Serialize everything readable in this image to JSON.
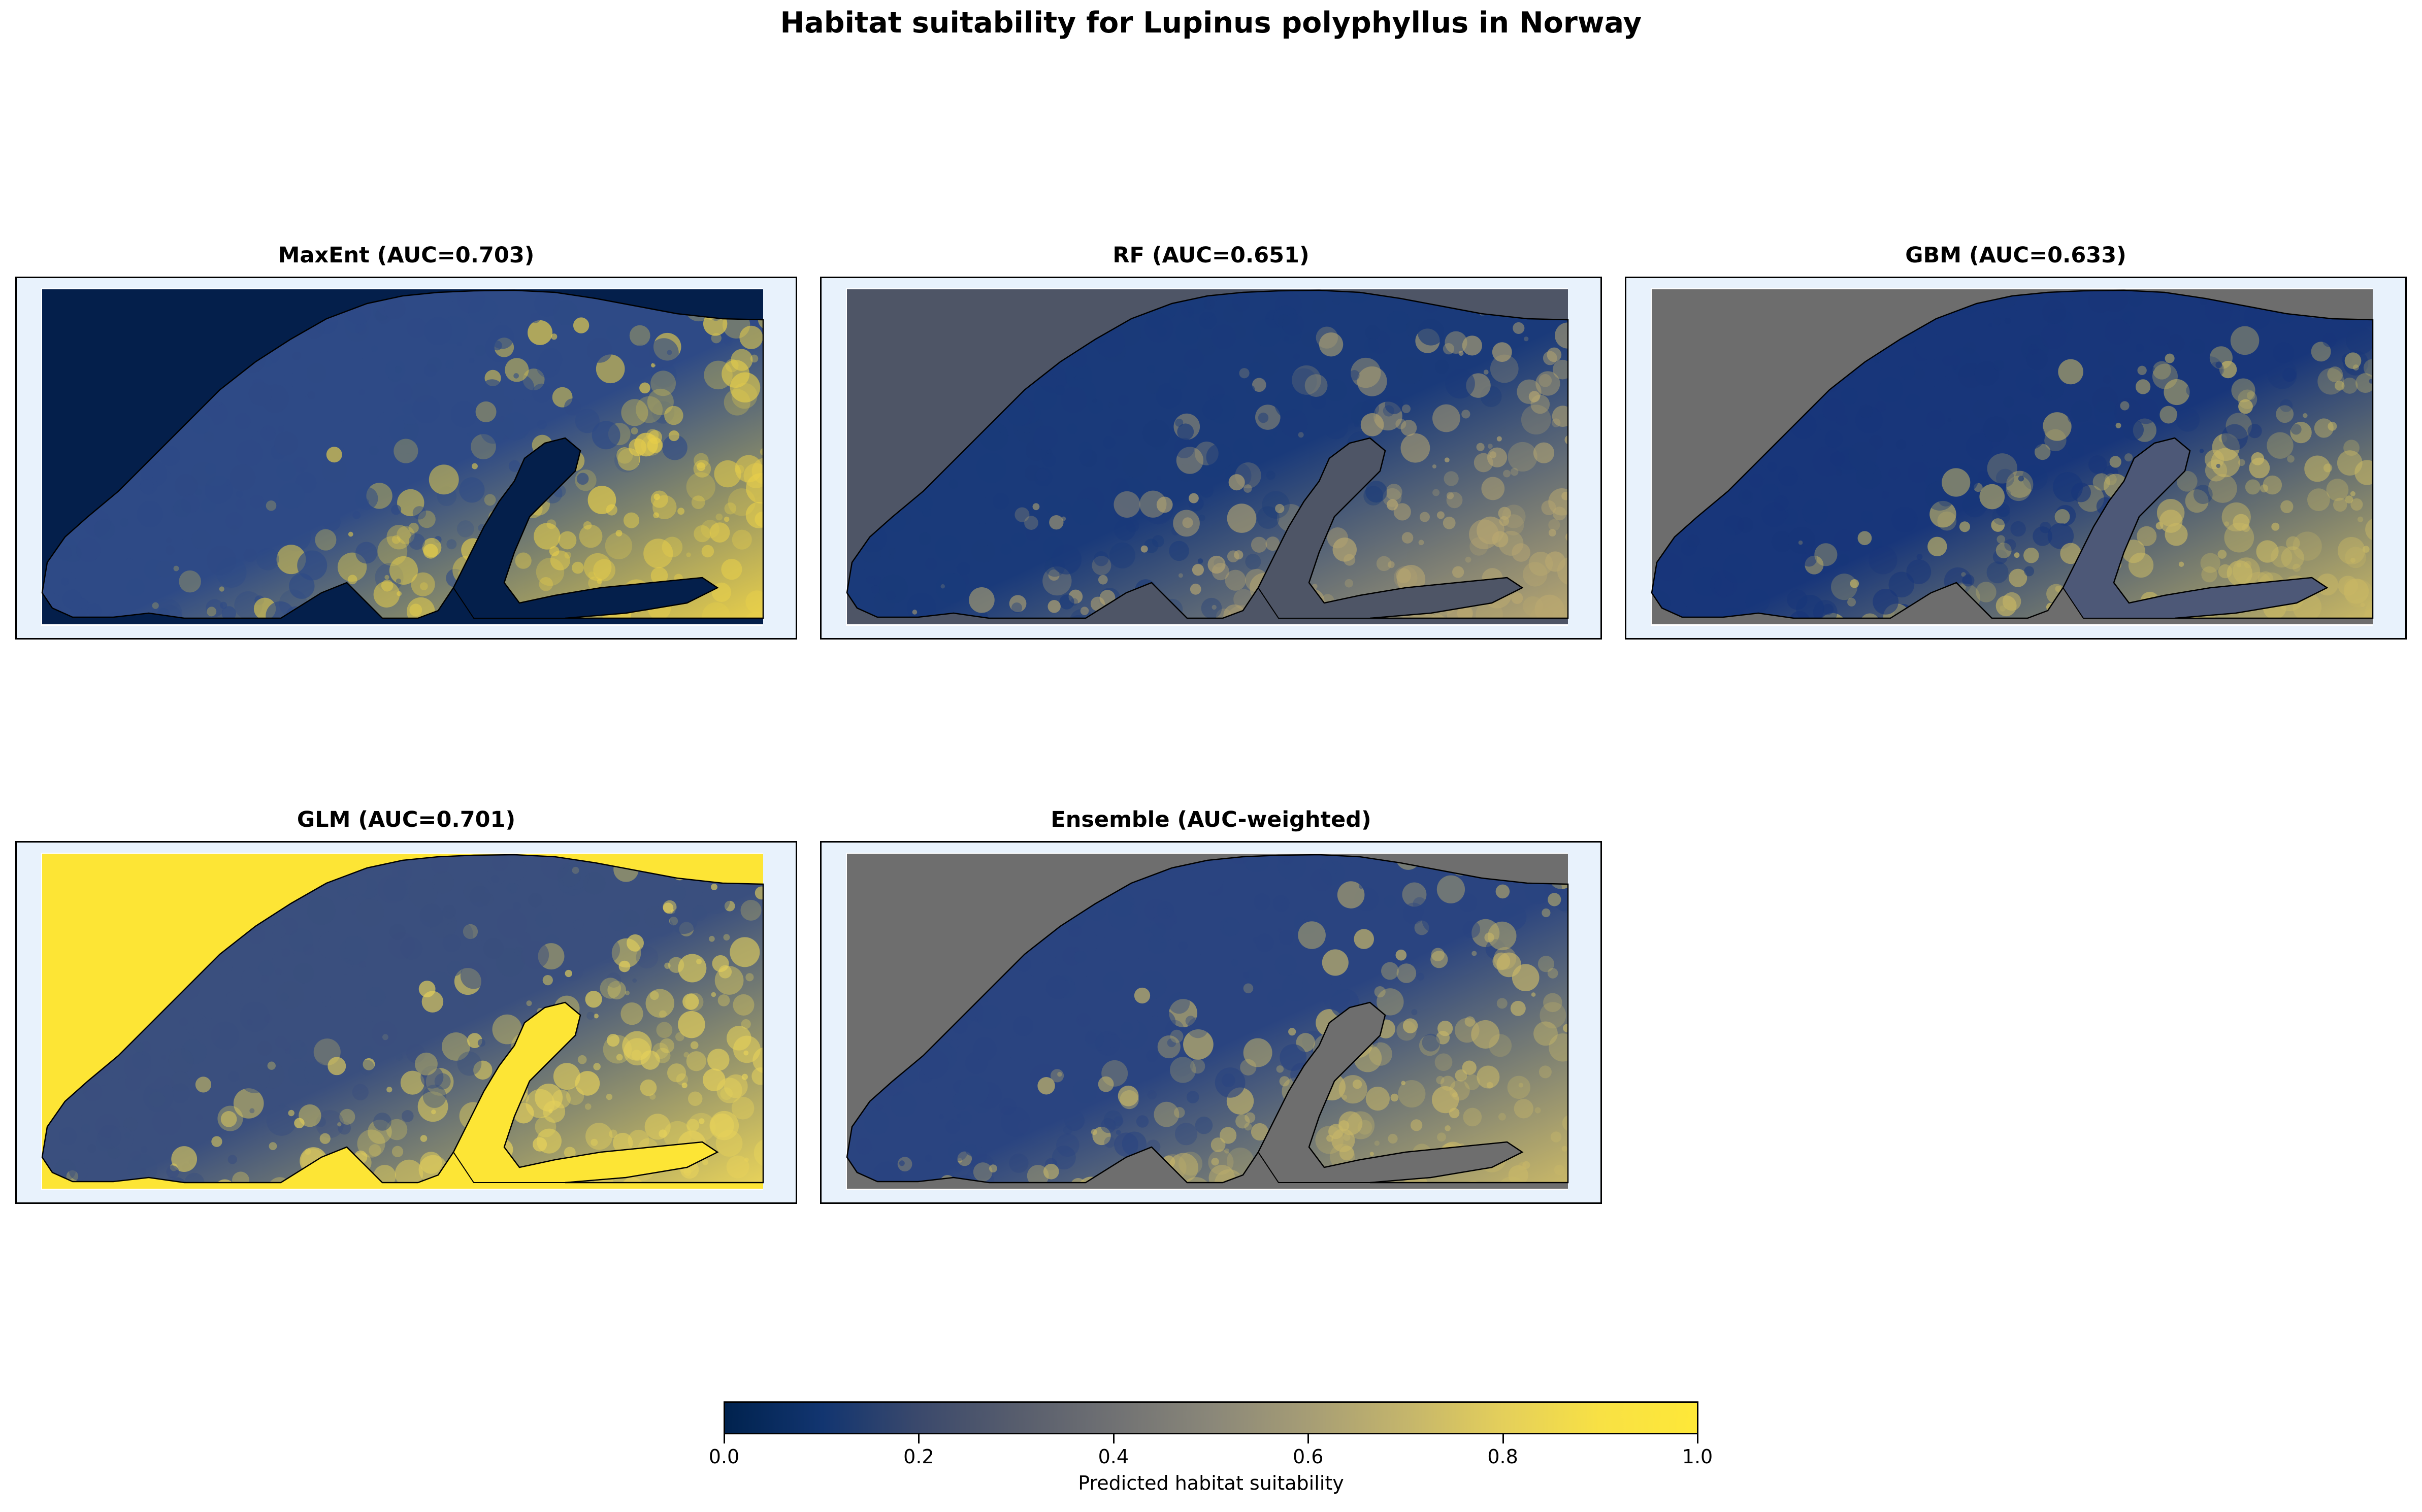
{
  "title": "Habitat suitability for Lupinus polyphyllus in Norway",
  "panels": [
    {
      "label": "MaxEnt (AUC=0.703)",
      "ocean": "#041f4b",
      "land_base": "#2e4a86",
      "land_hi": "#e8cf4a",
      "water_bodies": "#041f4b"
    },
    {
      "label": "RF (AUC=0.651)",
      "ocean": "#4e5566",
      "land_base": "#1a3a7a",
      "land_hi": "#b9a870",
      "water_bodies": "#4e5566"
    },
    {
      "label": "GBM (AUC=0.633)",
      "ocean": "#6d6d6d",
      "land_base": "#18367a",
      "land_hi": "#c9b864",
      "water_bodies": "#4d5877"
    },
    {
      "label": "GLM (AUC=0.701)",
      "ocean": "#fde535",
      "land_base": "#3a4f7e",
      "land_hi": "#e7d25a",
      "water_bodies": "#fde535"
    },
    {
      "label": "Ensemble (AUC-weighted)",
      "ocean": "#6e6e6e",
      "land_base": "#2a4480",
      "land_hi": "#c8b768",
      "water_bodies": "#6e6e6e"
    }
  ],
  "colorbar": {
    "label": "Predicted habitat suitability",
    "colormap": "cividis",
    "range": [
      0.0,
      1.0
    ],
    "ticks": [
      "0.0",
      "0.2",
      "0.4",
      "0.6",
      "0.8",
      "1.0"
    ]
  }
}
